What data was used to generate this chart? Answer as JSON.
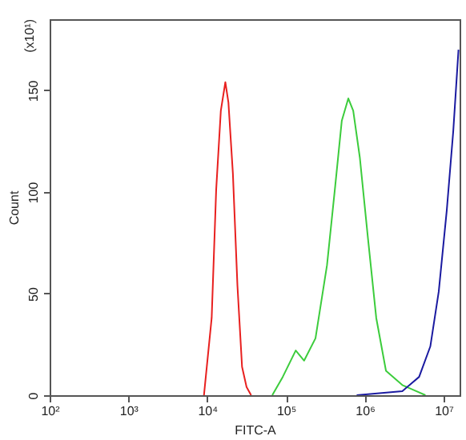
{
  "chart_data": {
    "type": "line",
    "xlabel": "FITC-A",
    "ylabel": "Count",
    "annotations": [
      "(x10¹)"
    ],
    "log": "x",
    "grid": false,
    "marker": "none",
    "line_style": "solid",
    "xlim": [
      100,
      16000000
    ],
    "xticks": [
      {
        "value": 100,
        "label": "10²"
      },
      {
        "value": 1000,
        "label": "10³"
      },
      {
        "value": 10000,
        "label": "10⁴"
      },
      {
        "value": 100000,
        "label": "10⁵"
      },
      {
        "value": 1000000,
        "label": "10⁶"
      },
      {
        "value": 10000000,
        "label": "10⁷"
      }
    ],
    "ylim": [
      0,
      185
    ],
    "yticks": [
      0,
      50,
      100,
      150
    ],
    "series": [
      {
        "color": "#e8201f",
        "x": [
          9100,
          11400,
          13000,
          14900,
          17000,
          18600,
          21200,
          24200,
          27700,
          31600,
          36100
        ],
        "values": [
          0,
          38,
          101,
          140,
          154,
          144,
          109,
          54,
          14,
          4,
          0
        ]
      },
      {
        "color": "#3ccc3c",
        "x": [
          67000,
          91000,
          133000,
          170000,
          237000,
          332000,
          422000,
          511000,
          619000,
          714000,
          866000,
          1100000,
          1400000,
          1860000,
          3000000,
          5900000
        ],
        "values": [
          0,
          9,
          22,
          17,
          28,
          64,
          103,
          135,
          146,
          140,
          117,
          77,
          38,
          12,
          5,
          0
        ]
      },
      {
        "color": "#1a1aa0",
        "x": [
          790000,
          3000000,
          4900000,
          6800000,
          8700000,
          11000000,
          13300000,
          15500000
        ],
        "values": [
          0,
          2,
          9,
          24,
          51,
          91,
          130,
          170
        ]
      }
    ]
  }
}
